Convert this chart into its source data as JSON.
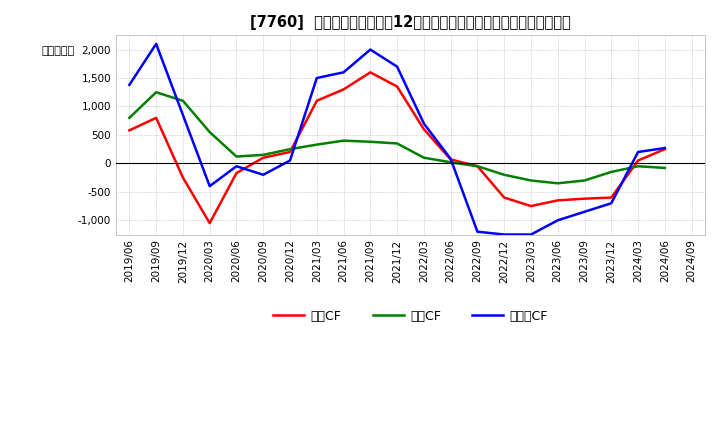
{
  "title": "[7760]  キャッシュフローの12か月移動合計の対前年同期増減額の推移",
  "ylabel": "（百万円）",
  "ylim": [
    -1250,
    2250
  ],
  "yticks": [
    -1000,
    -500,
    0,
    500,
    1000,
    1500,
    2000
  ],
  "x_labels": [
    "2019/06",
    "2019/09",
    "2019/12",
    "2020/03",
    "2020/06",
    "2020/09",
    "2020/12",
    "2021/03",
    "2021/06",
    "2021/09",
    "2021/12",
    "2022/03",
    "2022/06",
    "2022/09",
    "2022/12",
    "2023/03",
    "2023/06",
    "2023/09",
    "2023/12",
    "2024/03",
    "2024/06",
    "2024/09"
  ],
  "operating_cf": [
    580,
    800,
    -250,
    -1050,
    -170,
    100,
    200,
    1100,
    1300,
    1600,
    1350,
    600,
    70,
    -50,
    -600,
    -750,
    -650,
    -620,
    -600,
    50,
    250,
    null
  ],
  "investing_cf": [
    800,
    1250,
    1100,
    550,
    120,
    150,
    250,
    330,
    400,
    380,
    350,
    100,
    20,
    -50,
    -200,
    -300,
    -350,
    -300,
    -150,
    -50,
    -80,
    null
  ],
  "free_cf": [
    1380,
    2100,
    850,
    -400,
    -50,
    -200,
    50,
    1500,
    1600,
    2000,
    1700,
    700,
    80,
    -1200,
    -1250,
    -1250,
    -1000,
    -850,
    -700,
    200,
    270,
    null
  ],
  "colors": {
    "operating": "#ff0000",
    "investing": "#008000",
    "free": "#0000ff"
  },
  "legend_labels": [
    "営業CF",
    "投資CF",
    "フリーCF"
  ],
  "background_color": "#ffffff",
  "grid_color": "#aaaaaa",
  "title_fontsize": 10.5,
  "tick_fontsize": 7.5,
  "ylabel_fontsize": 8
}
